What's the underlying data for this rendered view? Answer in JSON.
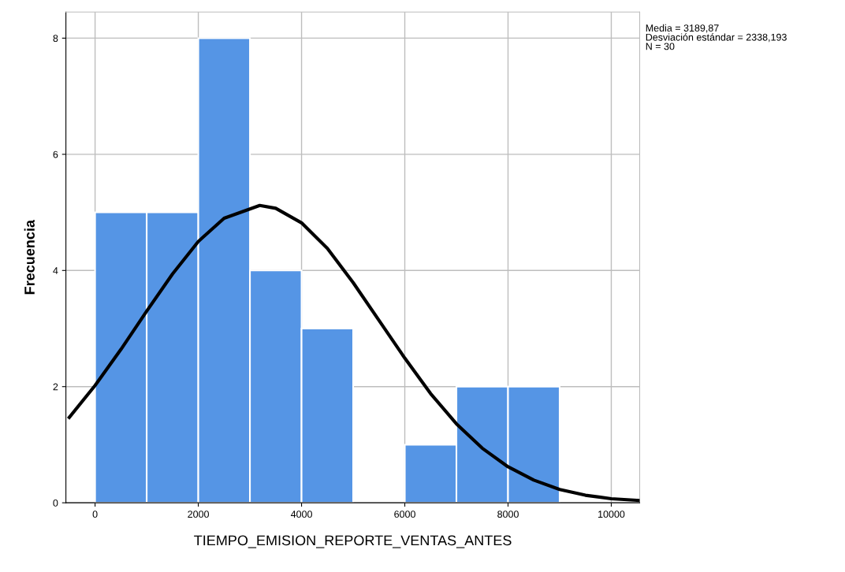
{
  "chart_data": {
    "type": "histogram",
    "xlabel": "TIEMPO_EMISION_REPORTE_VENTAS_ANTES",
    "ylabel": "Frecuencia",
    "bins": [
      0,
      1000,
      2000,
      3000,
      4000,
      5000,
      6000,
      7000,
      8000,
      9000
    ],
    "values": [
      5,
      5,
      8,
      4,
      3,
      0,
      1,
      2,
      2
    ],
    "color": "#5595e5",
    "series": [
      {
        "type": "line",
        "color": "#000000",
        "x": [
          -500,
          0,
          500,
          1000,
          1500,
          2000,
          2500,
          3190,
          3500,
          4000,
          4500,
          5000,
          5500,
          6000,
          6500,
          7000,
          7500,
          8000,
          8500,
          9000,
          9500,
          10000,
          10550
        ],
        "values": [
          1.47,
          2.02,
          2.64,
          3.3,
          3.94,
          4.5,
          4.9,
          5.12,
          5.07,
          4.82,
          4.38,
          3.79,
          3.14,
          2.49,
          1.88,
          1.36,
          0.94,
          0.62,
          0.39,
          0.23,
          0.13,
          0.07,
          0.04
        ]
      }
    ],
    "xlim": [
      -565,
      10550
    ],
    "xticks": [
      0,
      2000,
      4000,
      6000,
      8000,
      10000
    ],
    "ylim": [
      0,
      8.45
    ],
    "yticks": [
      0,
      2,
      4,
      6,
      8
    ],
    "grid": true,
    "annotations": [
      "Media = 3189,87",
      "Desviación estándar = 2338,193",
      "N = 30"
    ]
  }
}
